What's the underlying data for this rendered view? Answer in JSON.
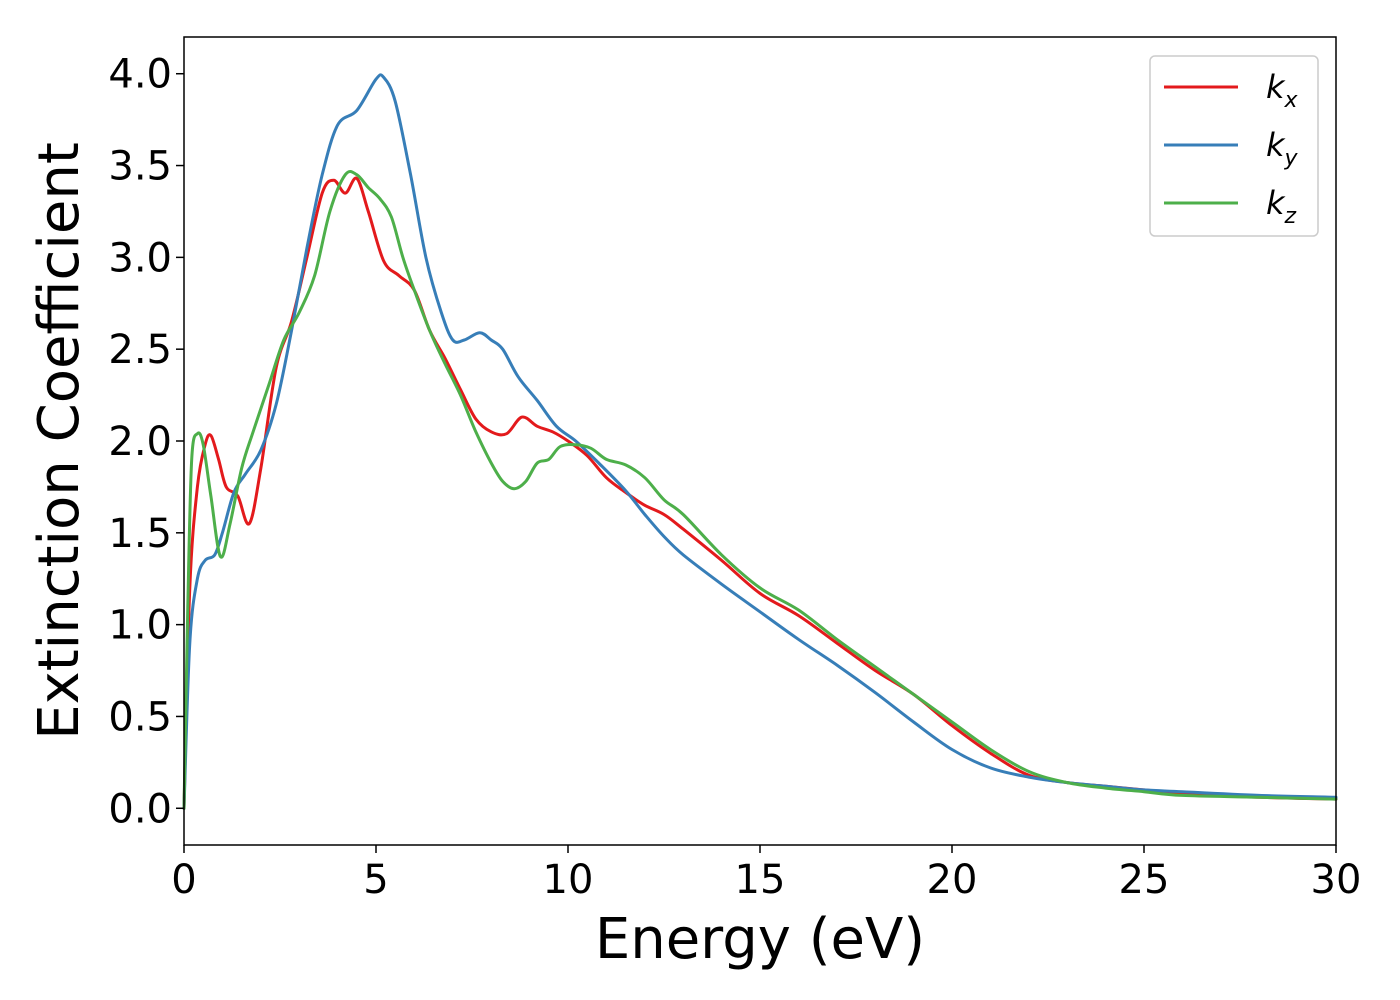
{
  "chart_data": {
    "type": "line",
    "xlabel": "Energy (eV)",
    "ylabel": "Extinction Coefficient",
    "xlim": [
      0,
      30
    ],
    "ylim": [
      -0.2,
      4.2
    ],
    "xticks": [
      0,
      5,
      10,
      15,
      20,
      25,
      30
    ],
    "xtick_labels": [
      "0",
      "5",
      "10",
      "15",
      "20",
      "25",
      "30"
    ],
    "yticks": [
      0.0,
      0.5,
      1.0,
      1.5,
      2.0,
      2.5,
      3.0,
      3.5,
      4.0
    ],
    "ytick_labels": [
      "0.0",
      "0.5",
      "1.0",
      "1.5",
      "2.0",
      "2.5",
      "3.0",
      "3.5",
      "4.0"
    ],
    "grid": false,
    "legend_position": "top-right",
    "series": [
      {
        "name": "k_x",
        "label_main": "k",
        "label_sub": "x",
        "color": "#e31a1c",
        "x": [
          0,
          0.15,
          0.35,
          0.55,
          0.7,
          0.9,
          1.1,
          1.4,
          1.7,
          2.0,
          2.4,
          2.8,
          3.2,
          3.6,
          3.9,
          4.2,
          4.5,
          4.8,
          5.2,
          5.6,
          6.0,
          6.4,
          6.8,
          7.2,
          7.6,
          8.0,
          8.4,
          8.8,
          9.2,
          9.6,
          10.0,
          10.5,
          11.0,
          11.5,
          12.0,
          12.5,
          13.0,
          14.0,
          15.0,
          16.0,
          17.0,
          18.0,
          19.0,
          20.0,
          21.0,
          22.0,
          23.0,
          24.0,
          25.0,
          26.0,
          28.0,
          30.0
        ],
        "y": [
          0.0,
          1.2,
          1.75,
          1.98,
          2.03,
          1.9,
          1.75,
          1.7,
          1.55,
          1.85,
          2.4,
          2.65,
          3.0,
          3.35,
          3.42,
          3.35,
          3.43,
          3.25,
          2.98,
          2.9,
          2.82,
          2.6,
          2.45,
          2.28,
          2.12,
          2.05,
          2.04,
          2.13,
          2.08,
          2.05,
          2.0,
          1.92,
          1.8,
          1.72,
          1.65,
          1.6,
          1.52,
          1.35,
          1.17,
          1.05,
          0.9,
          0.75,
          0.62,
          0.45,
          0.3,
          0.18,
          0.14,
          0.12,
          0.1,
          0.08,
          0.06,
          0.05
        ]
      },
      {
        "name": "k_y",
        "label_main": "k",
        "label_sub": "y",
        "color": "#377eb8",
        "x": [
          0,
          0.15,
          0.35,
          0.55,
          0.8,
          1.0,
          1.3,
          1.6,
          2.0,
          2.4,
          2.8,
          3.2,
          3.6,
          4.0,
          4.5,
          5.0,
          5.2,
          5.5,
          5.9,
          6.3,
          6.7,
          7.0,
          7.3,
          7.7,
          8.0,
          8.3,
          8.7,
          9.2,
          9.7,
          10.2,
          10.8,
          11.5,
          12.0,
          12.5,
          13.0,
          14.0,
          15.0,
          16.0,
          17.0,
          18.0,
          19.0,
          20.0,
          21.0,
          22.0,
          23.0,
          24.0,
          25.0,
          26.0,
          28.0,
          30.0
        ],
        "y": [
          0.0,
          0.9,
          1.25,
          1.35,
          1.38,
          1.5,
          1.72,
          1.82,
          1.95,
          2.2,
          2.6,
          3.05,
          3.45,
          3.72,
          3.8,
          3.97,
          3.98,
          3.85,
          3.45,
          3.0,
          2.7,
          2.55,
          2.55,
          2.59,
          2.55,
          2.5,
          2.35,
          2.22,
          2.08,
          2.0,
          1.88,
          1.73,
          1.6,
          1.48,
          1.38,
          1.22,
          1.07,
          0.92,
          0.78,
          0.63,
          0.47,
          0.32,
          0.22,
          0.17,
          0.14,
          0.12,
          0.1,
          0.09,
          0.07,
          0.06
        ]
      },
      {
        "name": "k_z",
        "label_main": "k",
        "label_sub": "z",
        "color": "#4daf4a",
        "x": [
          0,
          0.1,
          0.2,
          0.35,
          0.5,
          0.7,
          0.95,
          1.2,
          1.5,
          1.8,
          2.2,
          2.6,
          3.0,
          3.4,
          3.8,
          4.2,
          4.5,
          4.8,
          5.1,
          5.4,
          5.7,
          6.0,
          6.4,
          6.8,
          7.2,
          7.6,
          8.0,
          8.3,
          8.6,
          8.9,
          9.2,
          9.5,
          9.8,
          10.2,
          10.6,
          11.0,
          11.5,
          12.0,
          12.5,
          13.0,
          14.0,
          15.0,
          16.0,
          17.0,
          18.0,
          19.0,
          20.0,
          21.0,
          22.0,
          23.0,
          24.0,
          25.0,
          26.0,
          28.0,
          30.0
        ],
        "y": [
          0.0,
          1.1,
          1.9,
          2.04,
          1.98,
          1.7,
          1.37,
          1.55,
          1.85,
          2.05,
          2.3,
          2.55,
          2.7,
          2.9,
          3.25,
          3.45,
          3.45,
          3.38,
          3.32,
          3.22,
          3.0,
          2.82,
          2.6,
          2.42,
          2.25,
          2.05,
          1.88,
          1.78,
          1.74,
          1.78,
          1.88,
          1.9,
          1.97,
          1.98,
          1.96,
          1.9,
          1.87,
          1.8,
          1.68,
          1.6,
          1.38,
          1.2,
          1.08,
          0.92,
          0.77,
          0.62,
          0.47,
          0.32,
          0.2,
          0.14,
          0.11,
          0.09,
          0.07,
          0.06,
          0.05
        ]
      }
    ]
  }
}
